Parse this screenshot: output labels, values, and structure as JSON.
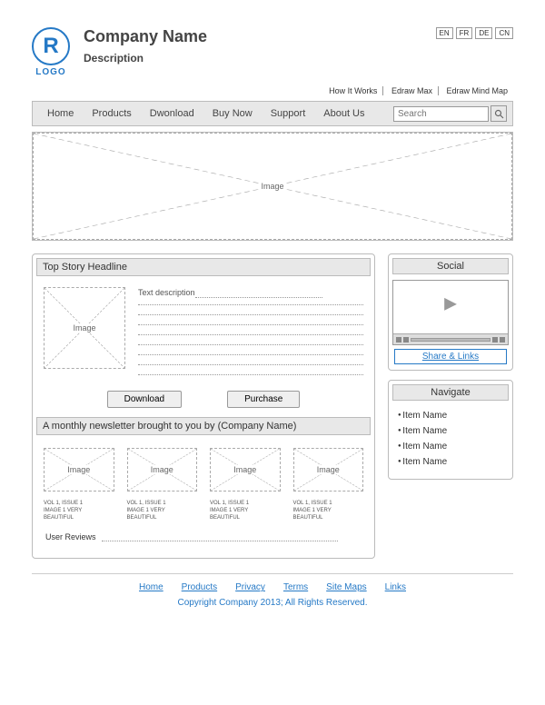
{
  "header": {
    "logo_r": "R",
    "logo_text": "LOGO",
    "company_name": "Company Name",
    "description": "Description"
  },
  "languages": [
    "EN",
    "FR",
    "DE",
    "CN"
  ],
  "top_links": [
    "How It Works",
    "Edraw Max",
    "Edraw Mind Map"
  ],
  "nav": [
    "Home",
    "Products",
    "Dwonload",
    "Buy Now",
    "Support",
    "About Us"
  ],
  "search_placeholder": "Search",
  "hero_label": "Image",
  "story": {
    "headline": "Top Story Headline",
    "img_label": "Image",
    "text_label": "Text description",
    "download_btn": "Download",
    "purchase_btn": "Purchase"
  },
  "newsletter": {
    "title": "A monthly newsletter brought to you by (Company Name)",
    "items": [
      {
        "img": "Image",
        "cap": "VOL 1, ISSUE 1\nIMAGE 1 VERY\nBEAUTIFUL"
      },
      {
        "img": "Image",
        "cap": "VOL 1, ISSUE 1\nIMAGE 1 VERY\nBEAUTIFUL"
      },
      {
        "img": "Image",
        "cap": "VOL 1, ISSUE 1\nIMAGE 1 VERY\nBEAUTIFUL"
      },
      {
        "img": "Image",
        "cap": "VOL 1, ISSUE 1\nIMAGE 1 VERY\nBEAUTIFUL"
      }
    ],
    "reviews": "User Reviews"
  },
  "social": {
    "title": "Social",
    "share": "Share & Links"
  },
  "navigate": {
    "title": "Navigate",
    "items": [
      "Item Name",
      "Item Name",
      "Item Name",
      "Item Name"
    ]
  },
  "footer": {
    "links": [
      "Home",
      "Products",
      "Privacy",
      "Terms",
      "Site Maps",
      "Links"
    ],
    "copyright": "Copyright Company 2013; All Rights Reserved."
  }
}
